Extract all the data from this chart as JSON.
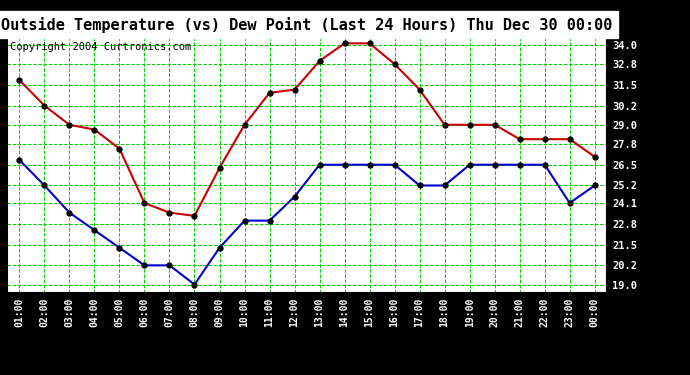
{
  "title": "Outside Temperature (vs) Dew Point (Last 24 Hours) Thu Dec 30 00:00",
  "copyright": "Copyright 2004 Curtronics.com",
  "x_labels": [
    "01:00",
    "02:00",
    "03:00",
    "04:00",
    "05:00",
    "06:00",
    "07:00",
    "08:00",
    "09:00",
    "10:00",
    "11:00",
    "12:00",
    "13:00",
    "14:00",
    "15:00",
    "16:00",
    "17:00",
    "18:00",
    "19:00",
    "20:00",
    "21:00",
    "22:00",
    "23:00",
    "00:00"
  ],
  "temp_red": [
    31.8,
    30.2,
    29.0,
    28.7,
    27.5,
    24.1,
    23.5,
    23.3,
    26.3,
    29.0,
    31.0,
    31.2,
    33.0,
    34.1,
    34.1,
    32.8,
    31.2,
    29.0,
    29.0,
    29.0,
    28.1,
    28.1,
    28.1,
    27.0
  ],
  "temp_blue": [
    26.8,
    25.2,
    23.5,
    22.4,
    21.3,
    20.2,
    20.2,
    19.0,
    21.3,
    23.0,
    23.0,
    24.5,
    26.5,
    26.5,
    26.5,
    26.5,
    25.2,
    25.2,
    26.5,
    26.5,
    26.5,
    26.5,
    24.1,
    25.2
  ],
  "y_ticks": [
    19.0,
    20.2,
    21.5,
    22.8,
    24.1,
    25.2,
    26.5,
    27.8,
    29.0,
    30.2,
    31.5,
    32.8,
    34.0
  ],
  "ylim": [
    18.5,
    34.7
  ],
  "bg_color": "#000000",
  "plot_bg": "#ffffff",
  "red_color": "#cc0000",
  "blue_color": "#0000cc",
  "grid_color": "#00cc00",
  "title_color": "#000000",
  "title_fontsize": 11,
  "copyright_fontsize": 7.5
}
